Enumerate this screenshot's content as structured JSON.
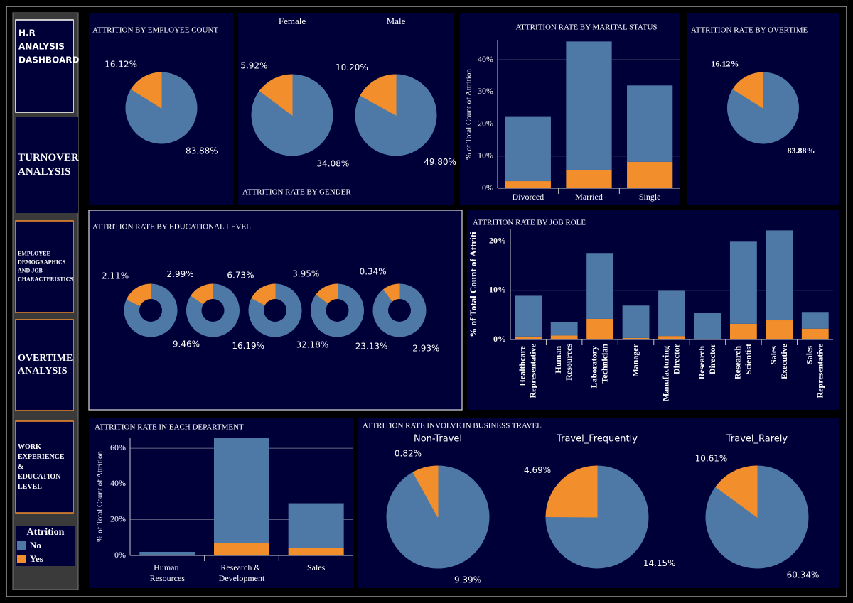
{
  "sidebar": {
    "title": [
      "H.R",
      "ANALYSIS",
      "DASHBOARD"
    ],
    "buttons": [
      {
        "lines": [
          "TURNOVER",
          "ANALYSIS"
        ]
      },
      {
        "lines": [
          "EMPLOYEE",
          "DEMOGRAPHICS",
          "AND JOB",
          "CHARACTERISTICS"
        ]
      },
      {
        "lines": [
          "OVERTIME",
          "ANALYSIS"
        ]
      },
      {
        "lines": [
          "WORK",
          "EXPERIENCE",
          "&",
          "EDUCATION",
          "LEVEL"
        ]
      }
    ]
  },
  "legend": {
    "title": "Attrition",
    "items": [
      {
        "name": "No",
        "color": "#4e79a7"
      },
      {
        "name": "Yes",
        "color": "#f28e2b"
      }
    ]
  },
  "chart_data": [
    {
      "type": "pie",
      "title": "ATTRITION BY EMPLOYEE COUNT",
      "values": [
        83.88,
        16.12
      ],
      "value_labels": [
        "83.88%",
        "16.12%"
      ]
    },
    {
      "type": "multipie",
      "title": "ATTRITION RATE BY GENDER",
      "pies": [
        {
          "name": "Female",
          "values": [
            34.08,
            5.92
          ],
          "value_labels": [
            "34.08%",
            "5.92%"
          ]
        },
        {
          "name": "Male",
          "values": [
            49.8,
            10.2
          ],
          "value_labels": [
            "49.80%",
            "10.20%"
          ]
        }
      ]
    },
    {
      "type": "bar",
      "title": "ATTRITION RATE BY MARITAL STATUS",
      "y_label": "% of Total Count of Attrition",
      "categories": [
        "Divorced",
        "Married",
        "Single"
      ],
      "series": [
        {
          "values": [
            20.0,
            40.0,
            23.8
          ]
        },
        {
          "values": [
            2.2,
            5.7,
            8.2
          ]
        }
      ],
      "ylim": [
        0,
        46
      ],
      "yticks": [
        {
          "value": 0,
          "label": "0%"
        },
        {
          "value": 10,
          "label": "10%"
        },
        {
          "value": 20,
          "label": "20%"
        },
        {
          "value": 30,
          "label": "30%"
        },
        {
          "value": 40,
          "label": "40%"
        }
      ],
      "grid": true
    },
    {
      "type": "pie",
      "title": "ATTRITION RATE BY OVERTIME",
      "values": [
        83.88,
        16.12
      ],
      "value_labels": [
        "83.88%",
        "16.12%"
      ]
    },
    {
      "type": "donuts",
      "title": "ATTRITION RATE BY EDUCATIONAL LEVEL",
      "pies": [
        {
          "values": [
            9.46,
            2.11
          ],
          "value_labels": [
            "9.46%",
            "2.11%"
          ]
        },
        {
          "values": [
            16.19,
            2.99
          ],
          "value_labels": [
            "16.19%",
            "2.99%"
          ]
        },
        {
          "values": [
            32.18,
            6.73
          ],
          "value_labels": [
            "32.18%",
            "6.73%"
          ]
        },
        {
          "values": [
            23.13,
            3.95
          ],
          "value_labels": [
            "23.13%",
            "3.95%"
          ]
        },
        {
          "values": [
            2.93,
            0.34
          ],
          "value_labels": [
            "2.93%",
            "0.34%"
          ]
        }
      ]
    },
    {
      "type": "bar",
      "title": "ATTRITION RATE BY JOB ROLE",
      "y_label": "% of Total Count of Attriti",
      "categories": [
        "Healthcare Representative",
        "Human Resources",
        "Laboratory Technician",
        "Manager",
        "Manufacturing Director",
        "Research Director",
        "Research Scientist",
        "Sales Executive",
        "Sales Representative"
      ],
      "series": [
        {
          "values": [
            8.3,
            2.7,
            13.4,
            6.6,
            9.2,
            5.3,
            16.7,
            18.3,
            3.4
          ]
        },
        {
          "values": [
            0.6,
            0.8,
            4.2,
            0.3,
            0.7,
            0.1,
            3.2,
            3.9,
            2.2
          ]
        }
      ],
      "ylim": [
        0,
        22.4
      ],
      "yticks": [
        {
          "value": 0,
          "label": "0%"
        },
        {
          "value": 10,
          "label": "10%"
        },
        {
          "value": 20,
          "label": "20%"
        }
      ],
      "grid": true
    },
    {
      "type": "bar",
      "title": "ATTRITION RATE IN EACH DEPARTMENT",
      "y_label": "% of Total Count of Attrition",
      "categories": [
        "Human Resources",
        "Research & Development",
        "Sales"
      ],
      "series": [
        {
          "values": [
            1.6,
            58.5,
            25.2
          ]
        },
        {
          "values": [
            0.4,
            7.1,
            4.0
          ]
        }
      ],
      "ylim": [
        0,
        66
      ],
      "yticks": [
        {
          "value": 0,
          "label": "0%"
        },
        {
          "value": 20,
          "label": "20%"
        },
        {
          "value": 40,
          "label": "40%"
        },
        {
          "value": 60,
          "label": "60%"
        }
      ],
      "grid": true
    },
    {
      "type": "multipie",
      "title": "ATTRITION RATE INVOLVE IN BUSINESS TRAVEL",
      "pies": [
        {
          "name": "Non-Travel",
          "values": [
            9.39,
            0.82
          ],
          "value_labels": [
            "9.39%",
            "0.82%"
          ]
        },
        {
          "name": "Travel_Frequently",
          "values": [
            14.15,
            4.69
          ],
          "value_labels": [
            "14.15%",
            "4.69%"
          ]
        },
        {
          "name": "Travel_Rarely",
          "values": [
            60.34,
            10.61
          ],
          "value_labels": [
            "60.34%",
            "10.61%"
          ]
        }
      ]
    }
  ]
}
